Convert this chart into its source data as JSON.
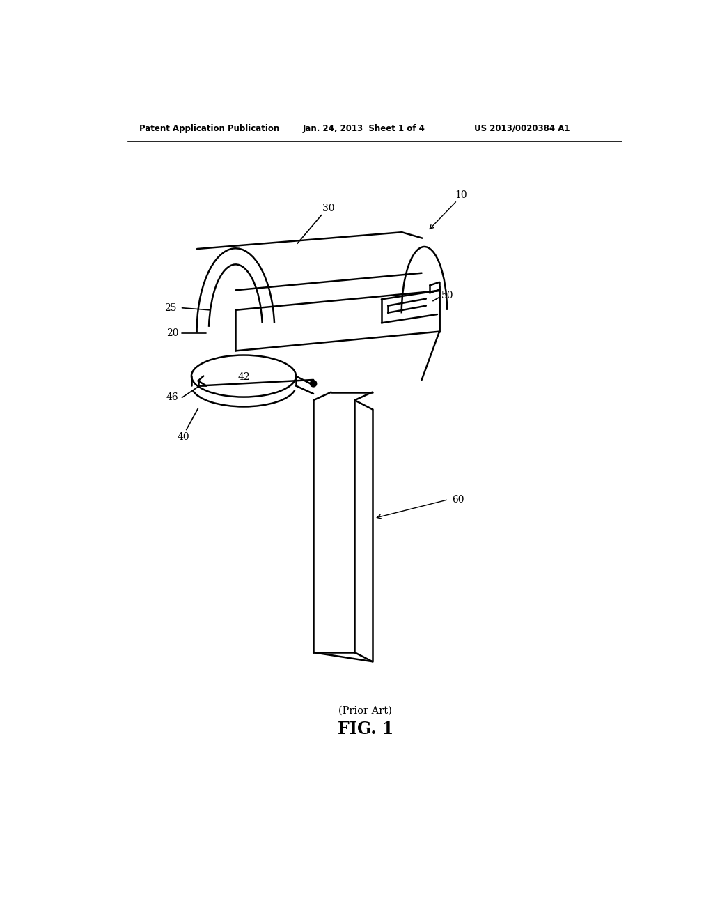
{
  "bg_color": "#ffffff",
  "line_color": "#000000",
  "header_text": "Patent Application Publication",
  "header_date": "Jan. 24, 2013  Sheet 1 of 4",
  "header_patent": "US 2013/0020384 A1",
  "footer_prior_art": "(Prior Art)",
  "footer_fig": "FIG. 1",
  "lw_main": 1.8,
  "lw_thin": 1.2,
  "label_fontsize": 10,
  "header_fontsize": 8.5,
  "footer_fig_fontsize": 17,
  "footer_prior_fontsize": 10.5
}
